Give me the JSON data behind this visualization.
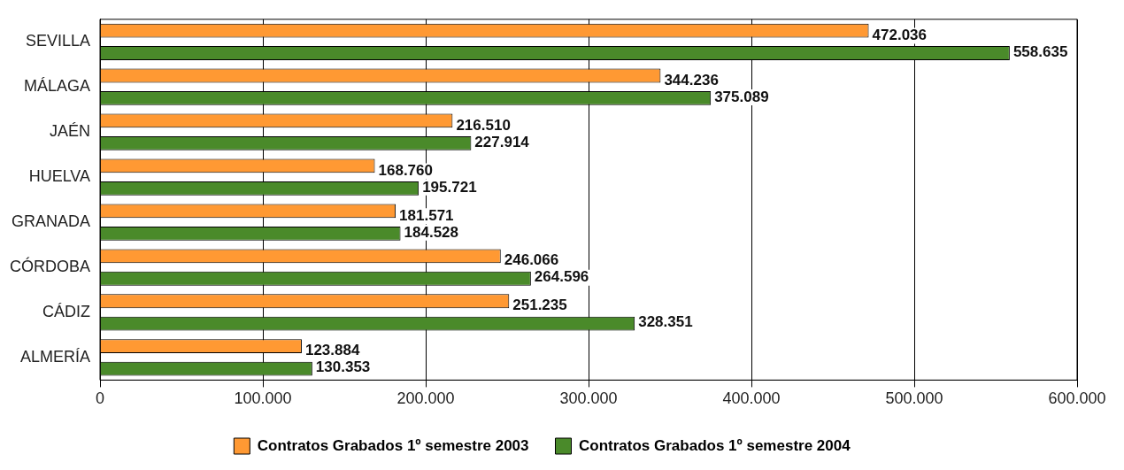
{
  "chart_data": {
    "type": "bar",
    "orientation": "horizontal",
    "categories": [
      "SEVILLA",
      "MÁLAGA",
      "JAÉN",
      "HUELVA",
      "GRANADA",
      "CÓRDOBA",
      "CÁDIZ",
      "ALMERÍA"
    ],
    "series": [
      {
        "name": "Contratos Grabados 1º semestre 2003",
        "color": "#ff9933",
        "values": [
          472036,
          344236,
          216510,
          168760,
          181571,
          246066,
          251235,
          123884
        ],
        "value_labels": [
          "472.036",
          "344.236",
          "216.510",
          "168.760",
          "181.571",
          "246.066",
          "251.235",
          "123.884"
        ]
      },
      {
        "name": "Contratos Grabados 1º semestre 2004",
        "color": "#4a8a2a",
        "values": [
          558635,
          375089,
          227914,
          195721,
          184528,
          264596,
          328351,
          130353
        ],
        "value_labels": [
          "558.635",
          "375.089",
          "227.914",
          "195.721",
          "184.528",
          "264.596",
          "328.351",
          "130.353"
        ]
      }
    ],
    "xlim": [
      0,
      600000
    ],
    "xticks": [
      {
        "value": 0,
        "label": "0"
      },
      {
        "value": 100000,
        "label": "100.000"
      },
      {
        "value": 200000,
        "label": "200.000"
      },
      {
        "value": 300000,
        "label": "300.000"
      },
      {
        "value": 400000,
        "label": "400.000"
      },
      {
        "value": 500000,
        "label": "500.000"
      },
      {
        "value": 600000,
        "label": "600.000"
      }
    ],
    "grid": "x",
    "legend": "bottom"
  }
}
